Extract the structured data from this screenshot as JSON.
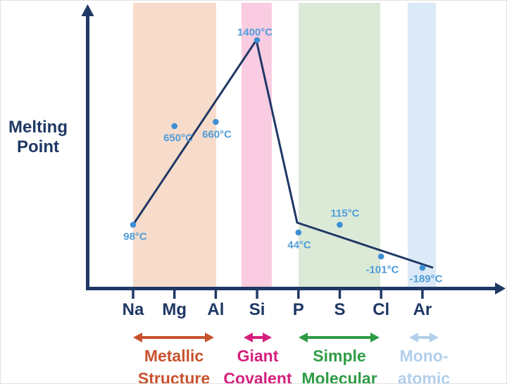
{
  "y_axis": {
    "label_line1": "Melting",
    "label_line2": "Point"
  },
  "colors": {
    "axis_navy": "#1f3865",
    "point_dot": "#3e8fd4",
    "point_label": "#4f9dd9"
  },
  "chart_data": {
    "type": "line",
    "title": "",
    "xlabel": "",
    "ylabel": "Melting Point",
    "grid": false,
    "legend": false,
    "categories": [
      "Na",
      "Mg",
      "Al",
      "Si",
      "P",
      "S",
      "Cl",
      "Ar"
    ],
    "values": [
      98,
      650,
      660,
      1400,
      44,
      115,
      -101,
      -189
    ],
    "point_labels": [
      "98°C",
      "650°C",
      "660°C",
      "1400°C",
      "44°C",
      "115°C",
      "-101°C",
      "-189°C"
    ],
    "trend_line_through": [
      "Na",
      "Si",
      "P",
      "Ar"
    ],
    "regions": [
      {
        "key": "metallic-structure",
        "label_line1": "Metallic",
        "label_line2": "Structure",
        "elements": [
          "Na",
          "Mg",
          "Al"
        ],
        "band_color": "#f7dccc",
        "accent_color": "#c8522d"
      },
      {
        "key": "giant-covalent",
        "label_line1": "Giant",
        "label_line2": "Covalent",
        "elements": [
          "Si"
        ],
        "band_color": "#f9cce1",
        "accent_color": "#d6207d"
      },
      {
        "key": "simple-molecular",
        "label_line1": "Simple",
        "label_line2": "Molecular",
        "elements": [
          "P",
          "S",
          "Cl"
        ],
        "band_color": "#dbe9d7",
        "accent_color": "#2f9c45"
      },
      {
        "key": "mono-atomic",
        "label_line1": "Mono-",
        "label_line2": "atomic",
        "elements": [
          "Ar"
        ],
        "band_color": "#dceaf7",
        "accent_color": "#b2cfec"
      }
    ]
  }
}
